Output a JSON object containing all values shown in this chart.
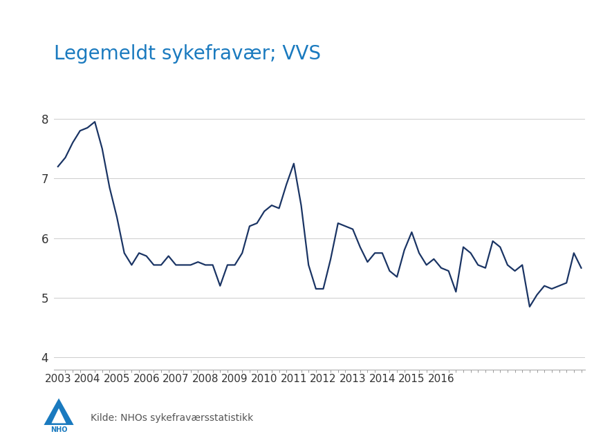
{
  "title": "Legemeldt sykefravær; VVS",
  "title_color": "#1a7abf",
  "title_fontsize": 20,
  "source_text": "Kilde: NHOs sykefraværsstatistikk",
  "line_color": "#1a3464",
  "line_width": 1.6,
  "background_color": "#ffffff",
  "ylim": [
    3.8,
    8.5
  ],
  "yticks": [
    4,
    5,
    6,
    7,
    8
  ],
  "grid_color": "#cccccc",
  "grid_linewidth": 0.7,
  "values": [
    7.2,
    7.35,
    7.6,
    7.8,
    7.85,
    7.95,
    7.5,
    6.85,
    6.35,
    5.75,
    5.55,
    5.75,
    5.7,
    5.55,
    5.55,
    5.7,
    5.55,
    5.55,
    5.55,
    5.6,
    5.55,
    5.55,
    5.2,
    5.55,
    5.55,
    5.75,
    6.2,
    6.25,
    6.45,
    6.55,
    6.5,
    6.9,
    7.25,
    6.55,
    5.55,
    5.15,
    5.15,
    5.65,
    6.25,
    6.2,
    6.15,
    5.85,
    5.6,
    5.75,
    5.75,
    5.45,
    5.35,
    5.8,
    6.1,
    5.75,
    5.55,
    5.65,
    5.5,
    5.45,
    5.1,
    5.85,
    5.75,
    5.55,
    5.5,
    5.95,
    5.85,
    5.55,
    5.45,
    5.55,
    4.85,
    5.05,
    5.2,
    5.15,
    5.2,
    5.25,
    5.75,
    5.5
  ],
  "xlabel_years": [
    "2003",
    "2004",
    "2005",
    "2006",
    "2007",
    "2008",
    "2009",
    "2010",
    "2011",
    "2012",
    "2013",
    "2014",
    "2015",
    "2016"
  ],
  "xlabel_year_starts": [
    0,
    4,
    8,
    12,
    16,
    20,
    24,
    28,
    32,
    36,
    40,
    44,
    48,
    52
  ]
}
